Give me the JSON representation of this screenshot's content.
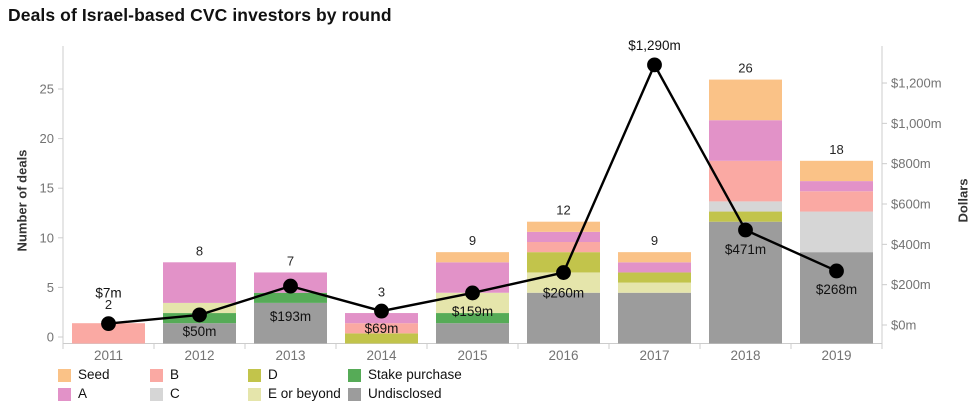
{
  "title": "Deals of Israel-based CVC investors by round",
  "chart_data": {
    "type": "bar",
    "subtype": "stacked-bars-with-dollar-line",
    "categories": [
      "2011",
      "2012",
      "2013",
      "2014",
      "2015",
      "2016",
      "2017",
      "2018",
      "2019"
    ],
    "series": [
      {
        "name": "Undisclosed",
        "color": "#9c9c9c",
        "values": [
          0,
          2,
          4,
          0,
          2,
          5,
          5,
          12,
          9
        ]
      },
      {
        "name": "Stake purchase",
        "color": "#56ab57",
        "values": [
          0,
          1,
          1,
          0,
          1,
          0,
          0,
          0,
          0
        ]
      },
      {
        "name": "E or beyond",
        "color": "#e5e5ab",
        "values": [
          0,
          1,
          0,
          0,
          2,
          2,
          1,
          0,
          0
        ]
      },
      {
        "name": "D",
        "color": "#c2c44b",
        "values": [
          0,
          0,
          0,
          1,
          0,
          2,
          1,
          1,
          0
        ]
      },
      {
        "name": "C",
        "color": "#d6d6d6",
        "values": [
          0,
          0,
          0,
          0,
          0,
          0,
          0,
          1,
          4
        ]
      },
      {
        "name": "B",
        "color": "#faa9a3",
        "values": [
          2,
          0,
          0,
          1,
          0,
          1,
          0,
          4,
          2
        ]
      },
      {
        "name": "A",
        "color": "#e292c8",
        "values": [
          0,
          4,
          2,
          1,
          3,
          1,
          1,
          4,
          1
        ]
      },
      {
        "name": "Seed",
        "color": "#fac287",
        "values": [
          0,
          0,
          0,
          0,
          1,
          1,
          1,
          4,
          2
        ]
      }
    ],
    "bar_totals": [
      "2",
      "8",
      "7",
      "3",
      "9",
      "12",
      "9",
      "26",
      "18"
    ],
    "line_series": {
      "name": "Dollars",
      "color": "#000000",
      "values": [
        7,
        50,
        193,
        69,
        159,
        260,
        1290,
        471,
        268
      ],
      "labels": [
        "$7m",
        "$50m",
        "$193m",
        "$69m",
        "$159m",
        "$260m",
        "$1,290m",
        "$471m",
        "$268m"
      ],
      "label_dy": [
        -26,
        21,
        35,
        22,
        23,
        25,
        -15,
        24,
        23
      ]
    },
    "left_axis": {
      "title": "Number of deals",
      "tick_values": [
        0,
        5,
        10,
        15,
        20,
        25
      ],
      "range": [
        0,
        27
      ]
    },
    "right_axis": {
      "title": "Dollars",
      "tick_values": [
        0,
        200,
        400,
        600,
        800,
        1000,
        1200
      ],
      "tick_labels": [
        "$0m",
        "$200m",
        "$400m",
        "$600m",
        "$800m",
        "$1,000m",
        "$1,200m"
      ],
      "range": [
        0,
        1300
      ]
    },
    "grid": false,
    "legend_position": "bottom",
    "legend_columns": [
      [
        "Seed",
        "A"
      ],
      [
        "B",
        "C"
      ],
      [
        "D",
        "E or beyond"
      ],
      [
        "Stake purchase",
        "Undisclosed"
      ]
    ]
  }
}
